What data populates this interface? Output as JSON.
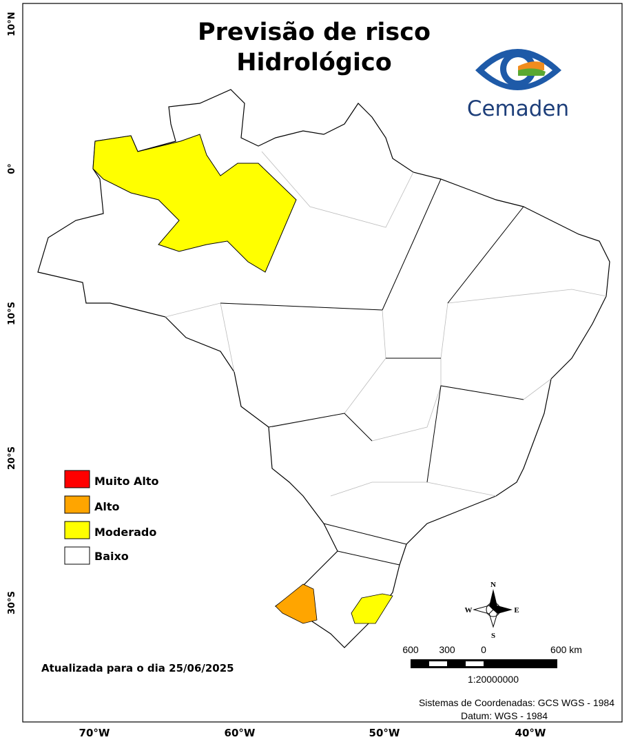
{
  "title": [
    "Previsão de risco",
    "Hidrológico"
  ],
  "logo": "Cemaden",
  "legend": [
    {
      "label": "Muito Alto",
      "color": "#ff0000"
    },
    {
      "label": "Alto",
      "color": "#ffa500"
    },
    {
      "label": "Moderado",
      "color": "#ffff00"
    },
    {
      "label": "Baixo",
      "color": "#ffffff"
    }
  ],
  "updated": "Atualizada para o dia 25/06/2025",
  "latitude_labels": [
    "10°N",
    "0°",
    "10°S",
    "20°S",
    "30°S"
  ],
  "longitude_labels": [
    "70°W",
    "60°W",
    "50°W",
    "40°W"
  ],
  "compass": {
    "n": "N",
    "s": "S",
    "e": "E",
    "w": "W"
  },
  "scale_bar": {
    "labels": [
      "600",
      "300",
      "0",
      "600 km"
    ],
    "ratio": "1:20000000"
  },
  "footer": [
    "Sistemas de Coordenadas: GCS WGS - 1984",
    "Datum: WGS - 1984"
  ]
}
